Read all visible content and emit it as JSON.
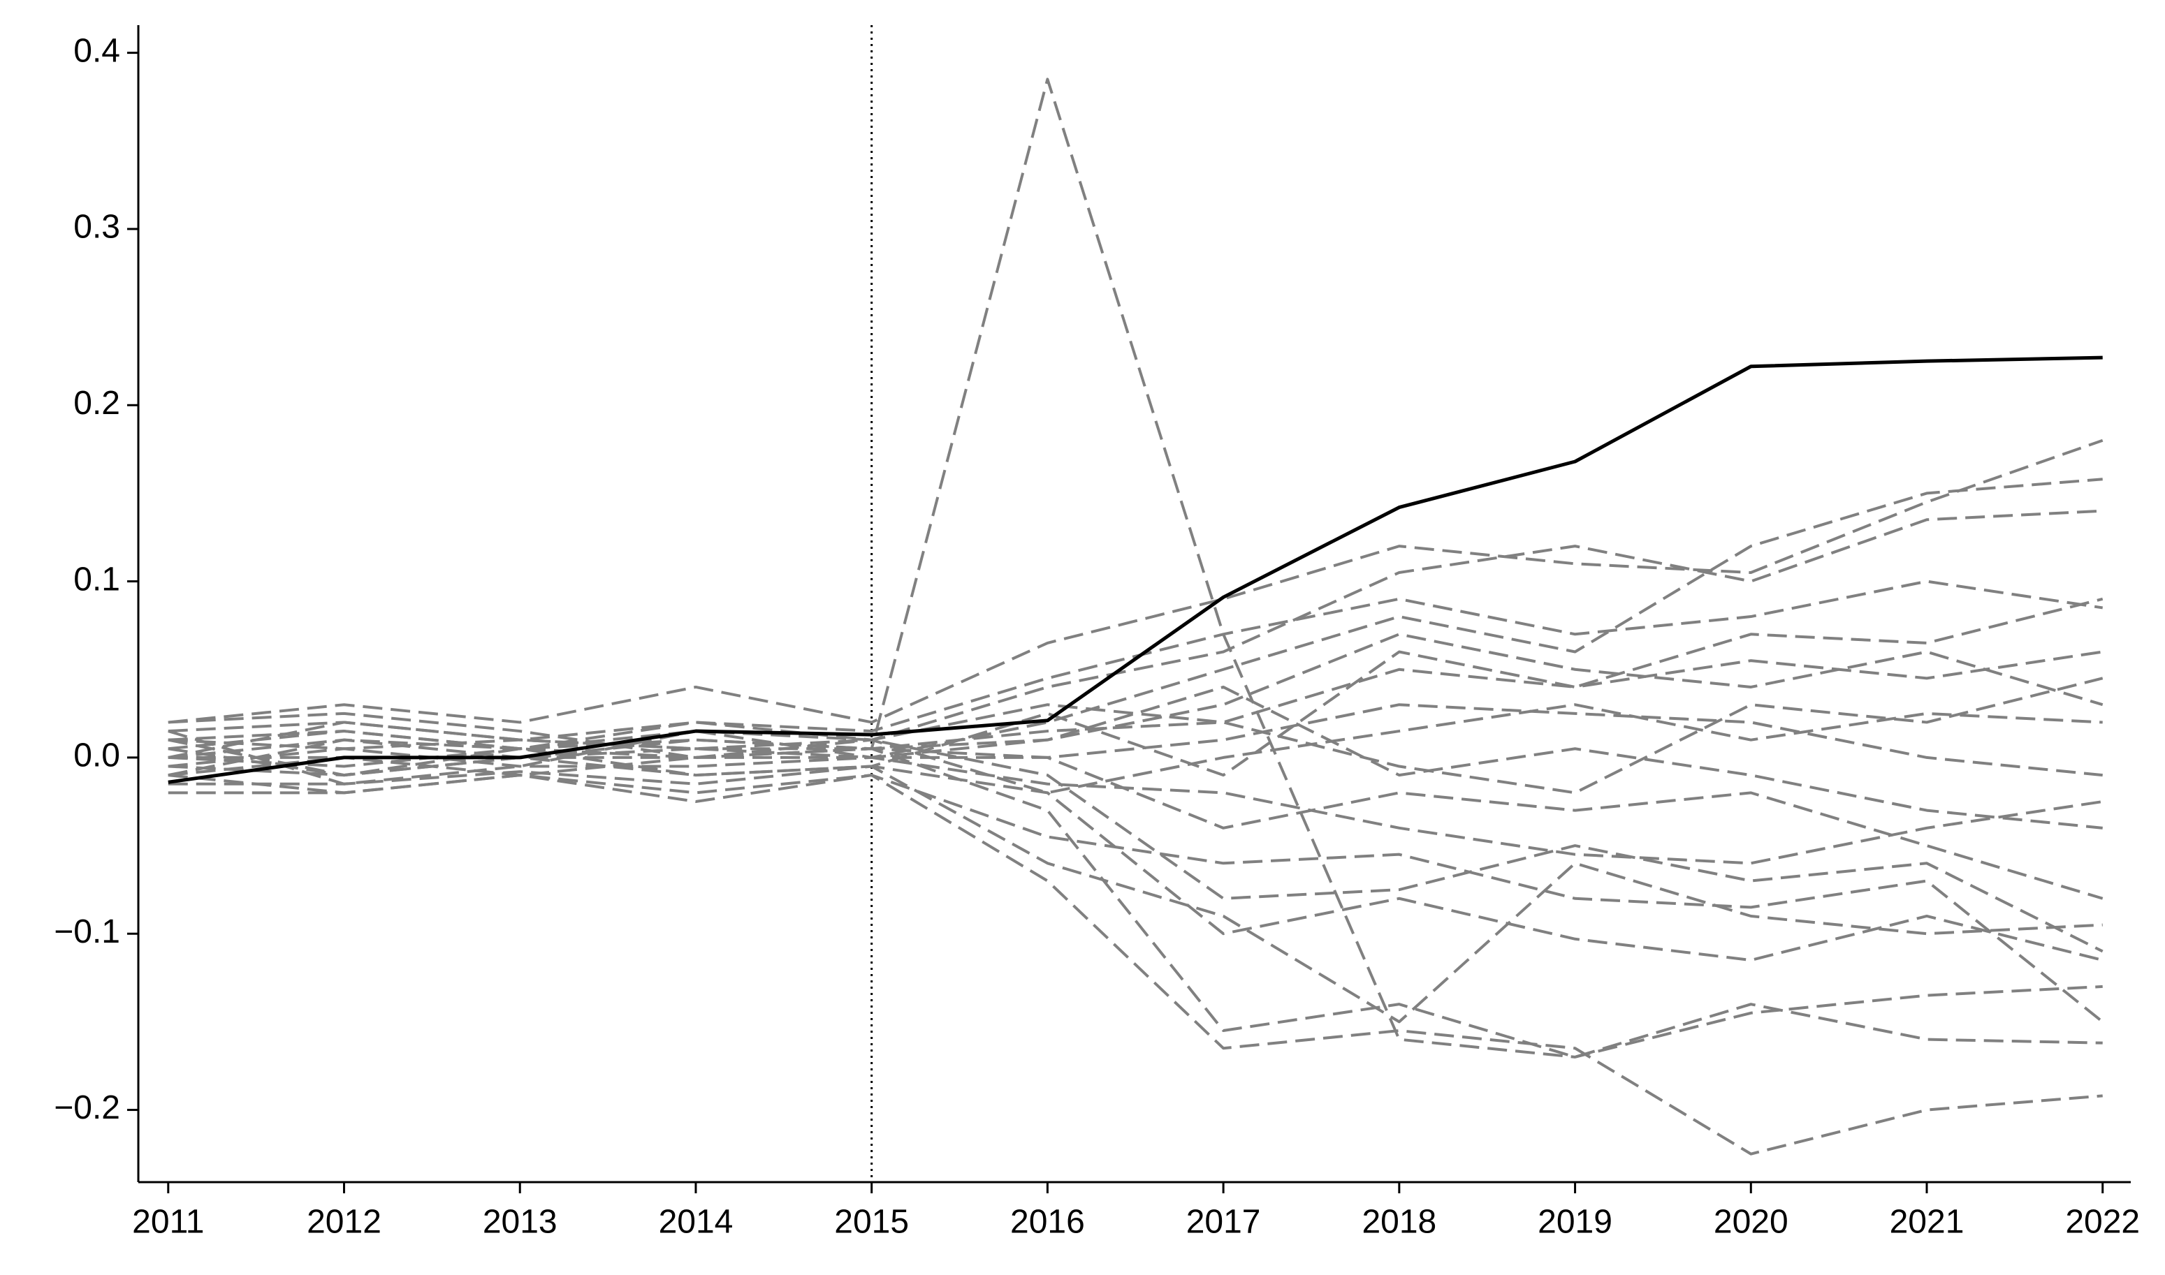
{
  "chart_data": {
    "type": "line",
    "x": [
      2011,
      2012,
      2013,
      2014,
      2015,
      2016,
      2017,
      2018,
      2019,
      2020,
      2021,
      2022
    ],
    "xlim": [
      2010.83,
      2022.16
    ],
    "xticks": [
      2011,
      2012,
      2013,
      2014,
      2015,
      2016,
      2017,
      2018,
      2019,
      2020,
      2021,
      2022
    ],
    "ylim": [
      -0.241,
      0.4157
    ],
    "yticks": [
      {
        "value": -0.2,
        "label": "−0.2"
      },
      {
        "value": -0.1,
        "label": "−0.1"
      },
      {
        "value": 0,
        "label": "0.0"
      },
      0.1,
      0.2,
      0.3,
      0.4
    ],
    "grid": false,
    "reference_line": {
      "x": 2015,
      "style": "dotted",
      "color": "#000000"
    },
    "series": [
      {
        "color": "#808080",
        "line_style": "dashed",
        "values": [
          0.01,
          -0.01,
          0.005,
          0.0,
          0.005,
          0.385,
          0.07,
          -0.16,
          -0.17,
          -0.145,
          -0.135,
          -0.13
        ]
      },
      {
        "color": "#808080",
        "line_style": "dashed",
        "values": [
          0.02,
          0.03,
          0.02,
          0.04,
          0.02,
          0.065,
          0.09,
          0.12,
          0.11,
          0.105,
          0.145,
          0.18
        ]
      },
      {
        "color": "#808080",
        "line_style": "dashed",
        "values": [
          -0.01,
          -0.02,
          -0.01,
          -0.025,
          -0.01,
          -0.07,
          -0.165,
          -0.155,
          -0.165,
          -0.225,
          -0.2,
          -0.192
        ]
      },
      {
        "color": "#808080",
        "line_style": "dashed",
        "values": [
          0.0,
          0.01,
          0.0,
          0.01,
          0.005,
          -0.03,
          -0.155,
          -0.14,
          -0.17,
          -0.14,
          -0.16,
          -0.162
        ]
      },
      {
        "color": "#808080",
        "line_style": "dashed",
        "values": [
          0.015,
          0.02,
          0.01,
          0.02,
          0.01,
          0.04,
          0.06,
          0.105,
          0.12,
          0.1,
          0.135,
          0.14
        ]
      },
      {
        "color": "#808080",
        "line_style": "dashed",
        "values": [
          -0.005,
          -0.01,
          0.0,
          -0.01,
          -0.005,
          -0.06,
          -0.09,
          -0.15,
          -0.06,
          -0.09,
          -0.1,
          -0.095
        ]
      },
      {
        "color": "#808080",
        "line_style": "dashed",
        "values": [
          0.005,
          0.015,
          0.005,
          0.015,
          0.0,
          0.02,
          0.05,
          0.08,
          0.06,
          0.12,
          0.15,
          0.158
        ]
      },
      {
        "color": "#808080",
        "line_style": "dashed",
        "values": [
          -0.015,
          -0.015,
          -0.008,
          -0.015,
          -0.005,
          -0.02,
          -0.1,
          -0.08,
          -0.103,
          -0.115,
          -0.09,
          -0.115
        ]
      },
      {
        "color": "#808080",
        "line_style": "dashed",
        "values": [
          0.01,
          0.005,
          0.01,
          0.005,
          0.01,
          0.03,
          0.02,
          0.05,
          0.04,
          0.07,
          0.065,
          0.09
        ]
      },
      {
        "color": "#808080",
        "line_style": "dashed",
        "values": [
          -0.01,
          0.0,
          -0.01,
          0.0,
          0.0,
          0.0,
          -0.04,
          -0.02,
          -0.03,
          -0.02,
          -0.05,
          -0.08
        ]
      },
      {
        "color": "#808080",
        "line_style": "dashed",
        "values": [
          0.0,
          -0.005,
          0.005,
          0.01,
          0.005,
          0.01,
          0.03,
          0.07,
          0.05,
          0.04,
          0.06,
          0.03
        ]
      },
      {
        "color": "#808080",
        "line_style": "dashed",
        "values": [
          0.02,
          0.025,
          0.015,
          0.0,
          0.01,
          -0.02,
          0.0,
          0.015,
          0.03,
          0.01,
          0.025,
          0.02
        ]
      },
      {
        "color": "#808080",
        "line_style": "dashed",
        "values": [
          -0.02,
          -0.02,
          -0.01,
          -0.02,
          -0.01,
          -0.045,
          -0.06,
          -0.055,
          -0.08,
          -0.085,
          -0.07,
          -0.15
        ]
      },
      {
        "color": "#808080",
        "line_style": "dashed",
        "values": [
          0.0,
          0.0,
          0.0,
          0.005,
          0.0,
          0.01,
          0.04,
          -0.01,
          0.005,
          -0.01,
          -0.03,
          -0.04
        ]
      },
      {
        "color": "#808080",
        "line_style": "dashed",
        "values": [
          0.01,
          0.015,
          0.005,
          0.02,
          0.015,
          0.045,
          0.07,
          0.09,
          0.07,
          0.08,
          0.1,
          0.085
        ]
      },
      {
        "color": "#808080",
        "line_style": "dashed",
        "values": [
          -0.005,
          0.005,
          -0.005,
          -0.005,
          0.0,
          -0.015,
          -0.02,
          -0.04,
          -0.055,
          -0.06,
          -0.04,
          -0.025
        ]
      },
      {
        "color": "#808080",
        "line_style": "dashed",
        "values": [
          0.005,
          -0.01,
          0.0,
          0.0,
          0.005,
          0.0,
          0.01,
          0.03,
          0.025,
          0.02,
          0.0,
          -0.01
        ]
      },
      {
        "color": "#808080",
        "line_style": "dashed",
        "values": [
          -0.01,
          0.01,
          0.005,
          -0.01,
          -0.005,
          0.025,
          -0.01,
          0.06,
          0.04,
          0.055,
          0.045,
          0.06
        ]
      },
      {
        "color": "#808080",
        "line_style": "dashed",
        "values": [
          0.015,
          -0.015,
          -0.005,
          0.015,
          0.01,
          -0.01,
          -0.08,
          -0.075,
          -0.05,
          -0.07,
          -0.06,
          -0.11
        ]
      },
      {
        "color": "#808080",
        "line_style": "dashed",
        "values": [
          0.0,
          0.02,
          0.01,
          0.005,
          0.005,
          0.015,
          0.02,
          -0.005,
          -0.02,
          0.03,
          0.02,
          0.045
        ]
      },
      {
        "color": "#000000",
        "line_style": "solid",
        "values": [
          -0.014,
          0.0,
          0.0,
          0.015,
          0.013,
          0.021,
          0.091,
          0.142,
          0.168,
          0.222,
          0.225,
          0.227
        ]
      }
    ]
  }
}
